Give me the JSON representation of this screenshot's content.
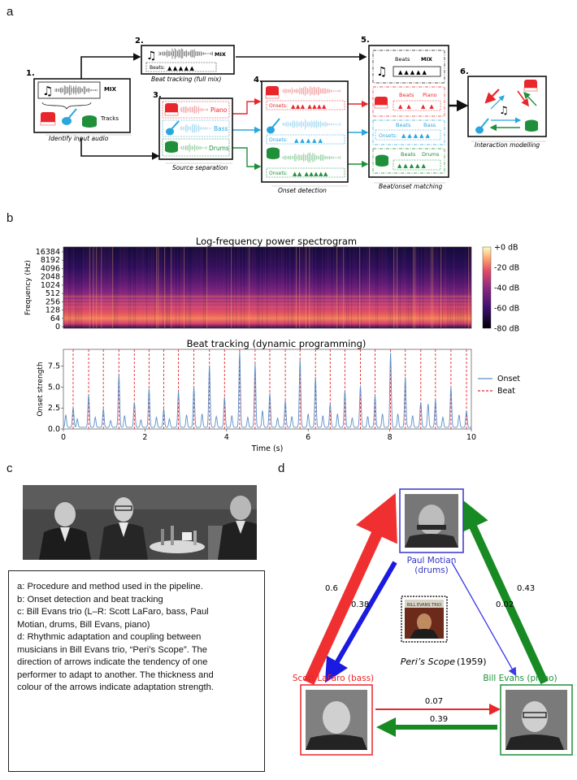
{
  "panels": {
    "a": "a",
    "b": "b",
    "c": "c",
    "d": "d"
  },
  "pipeline": {
    "steps": [
      {
        "num": "1.",
        "caption": "Identify input audio"
      },
      {
        "num": "2.",
        "caption": "Beat tracking (full mix)"
      },
      {
        "num": "3.",
        "caption": "Source separation"
      },
      {
        "num": "4.",
        "caption": "Onset detection"
      },
      {
        "num": "5.",
        "caption": "Beat/onset matching"
      },
      {
        "num": "6.",
        "caption": "Interaction modelling"
      }
    ],
    "mix_label": "MIX",
    "tracks_label": "Tracks",
    "beats_label": "Beats:",
    "beats_label2": "Beats",
    "onsets_label": "Onsets:",
    "instruments": [
      "Piano",
      "Bass",
      "Drums"
    ],
    "colors": {
      "piano": "#e8262b",
      "bass": "#29a6de",
      "drums": "#1f8f3a"
    }
  },
  "spectrogram": {
    "title": "Log-frequency power spectrogram",
    "ylabel": "Frequency (Hz)",
    "yticks": [
      "16384",
      "8192",
      "4096",
      "2048",
      "1024",
      "512",
      "256",
      "128",
      "64",
      "0"
    ],
    "colorbar_ticks": [
      "+0 dB",
      "-20 dB",
      "-40 dB",
      "-60 dB",
      "-80 dB"
    ]
  },
  "chart_data": {
    "type": "line",
    "title": "Beat tracking (dynamic programming)",
    "xlabel": "Time (s)",
    "ylabel": "Onset strength",
    "xlim": [
      0,
      10
    ],
    "ylim": [
      0,
      9.5
    ],
    "xticks": [
      "0",
      "2",
      "4",
      "6",
      "8",
      "10"
    ],
    "yticks": [
      "0.0",
      "2.5",
      "5.0",
      "7.5"
    ],
    "legend": {
      "placement": "right",
      "entries": [
        {
          "name": "Onset",
          "color": "#5b8fc7"
        },
        {
          "name": "Beat",
          "color": "#e8262b"
        }
      ]
    },
    "beats": [
      0.24,
      0.62,
      0.98,
      1.36,
      1.74,
      2.1,
      2.46,
      2.82,
      3.2,
      3.58,
      3.95,
      4.32,
      4.7,
      5.06,
      5.44,
      5.8,
      6.18,
      6.54,
      6.9,
      7.28,
      7.64,
      8.02,
      8.38,
      8.76,
      9.12,
      9.5,
      9.88
    ],
    "onset_peaks": [
      [
        0.06,
        1.5
      ],
      [
        0.24,
        2.4
      ],
      [
        0.34,
        1.0
      ],
      [
        0.62,
        3.9
      ],
      [
        0.78,
        1.2
      ],
      [
        0.98,
        2.2
      ],
      [
        1.16,
        0.8
      ],
      [
        1.36,
        6.3
      ],
      [
        1.5,
        1.4
      ],
      [
        1.74,
        3.0
      ],
      [
        1.9,
        0.9
      ],
      [
        2.1,
        4.6
      ],
      [
        2.28,
        1.2
      ],
      [
        2.46,
        2.2
      ],
      [
        2.6,
        1.0
      ],
      [
        2.82,
        4.3
      ],
      [
        3.02,
        1.5
      ],
      [
        3.2,
        4.8
      ],
      [
        3.4,
        1.6
      ],
      [
        3.58,
        7.4
      ],
      [
        3.75,
        1.3
      ],
      [
        3.95,
        3.6
      ],
      [
        4.13,
        1.4
      ],
      [
        4.32,
        9.2
      ],
      [
        4.52,
        1.2
      ],
      [
        4.7,
        7.6
      ],
      [
        4.88,
        2.0
      ],
      [
        5.06,
        4.1
      ],
      [
        5.25,
        1.1
      ],
      [
        5.44,
        3.2
      ],
      [
        5.6,
        1.3
      ],
      [
        5.8,
        8.1
      ],
      [
        6.0,
        1.6
      ],
      [
        6.18,
        6.0
      ],
      [
        6.36,
        1.4
      ],
      [
        6.54,
        2.8
      ],
      [
        6.72,
        1.6
      ],
      [
        6.9,
        4.4
      ],
      [
        7.08,
        1.1
      ],
      [
        7.28,
        5.0
      ],
      [
        7.46,
        1.3
      ],
      [
        7.64,
        3.8
      ],
      [
        7.82,
        1.6
      ],
      [
        8.02,
        8.9
      ],
      [
        8.2,
        1.6
      ],
      [
        8.38,
        6.0
      ],
      [
        8.56,
        1.4
      ],
      [
        8.76,
        3.0
      ],
      [
        8.94,
        2.8
      ],
      [
        9.12,
        3.3
      ],
      [
        9.3,
        1.2
      ],
      [
        9.5,
        4.8
      ],
      [
        9.7,
        1.5
      ],
      [
        9.88,
        2.0
      ]
    ]
  },
  "legend_text": [
    "a: Procedure and method used in the pipeline.",
    "b: Onset detection and beat tracking",
    "c: Bill Evans trio (L–R: Scott LaFaro, bass, Paul",
    "Motian, drums, Bill Evans, piano)",
    "d: Rhythmic adaptation and coupling between",
    "musicians in Bill Evans trio, “Peri’s Scope”. The",
    "direction of arrows indicate the tendency of one",
    "performer to adapt to another. The thickness and",
    "colour of the arrows indicate adaptation strength."
  ],
  "network": {
    "motian": {
      "name": "Paul Motian",
      "role": "(drums)",
      "color": "#3535c8"
    },
    "lafaro": {
      "name": "Scott LaFaro (bass)",
      "color": "#e8262b"
    },
    "evans": {
      "name": "Bill Evans (piano)",
      "color": "#1f8f3a"
    },
    "album": {
      "title": "Peri’s Scope",
      "year": "(1959)",
      "cover_text": "BILL EVANS TRIO"
    },
    "edges": {
      "lafaro_to_motian": "0.6",
      "motian_to_lafaro": "0.38",
      "evans_to_motian": "0.43",
      "motian_to_evans": "0.02",
      "lafaro_to_evans": "0.07",
      "evans_to_lafaro": "0.39"
    }
  }
}
